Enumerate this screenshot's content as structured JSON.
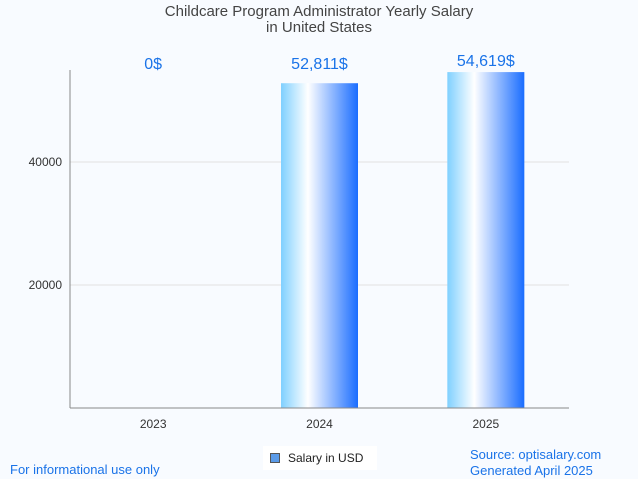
{
  "chart_data": {
    "type": "bar",
    "title": "Childcare Program Administrator Yearly Salary",
    "subtitle": "in United States",
    "categories": [
      "2023",
      "2024",
      "2025"
    ],
    "values": [
      0,
      52811,
      54619
    ],
    "data_labels": [
      "0$",
      "52,811$",
      "54,619$"
    ],
    "y_ticks": [
      20000,
      40000
    ],
    "y_tick_labels": [
      "20000",
      "40000"
    ],
    "ylim": [
      0,
      55000
    ],
    "xlabel": "",
    "ylabel": "",
    "grid": true,
    "legend": {
      "label": "Salary in USD",
      "placement": "bottom-center"
    },
    "colors": {
      "label": "#1a73e8",
      "bar_left": "#7fd0ff",
      "bar_mid": "#ffffff",
      "bar_right": "#1a6dff"
    }
  },
  "footer": {
    "disclaimer": "For informational use only",
    "source": "Source: optisalary.com",
    "generated": "Generated April 2025"
  }
}
